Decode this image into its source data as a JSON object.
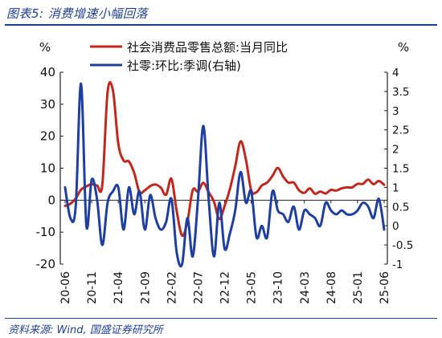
{
  "figure": {
    "title": "图表5:  消费增速小幅回落",
    "source": "资料来源:  Wind,  国盛证券研究所"
  },
  "chart_data": {
    "type": "line",
    "left_unit": "%",
    "right_unit": "%",
    "ylim_left": [
      -20,
      40
    ],
    "ylim_right": [
      -1,
      4
    ],
    "yticks_left": [
      "40",
      "30",
      "20",
      "10",
      "0",
      "-10",
      "-20"
    ],
    "yticks_right": [
      "4",
      "3.5",
      "3",
      "2.5",
      "2",
      "1.5",
      "1",
      "0.5",
      "0",
      "-0.5",
      "-1"
    ],
    "x_labels": [
      "20-06",
      "20-11",
      "21-04",
      "21-09",
      "22-02",
      "22-07",
      "22-12",
      "23-05",
      "23-10",
      "24-03",
      "24-08",
      "25-01",
      "25-06"
    ],
    "legend_position": "top",
    "grid": false,
    "series": [
      {
        "name": "社会消费品零售总额:当月同比",
        "axis": "left",
        "color": "#c0281e",
        "values": [
          -1.8,
          -1.1,
          0.5,
          3.3,
          4.3,
          5.0,
          4.6,
          4.8,
          33.8,
          34.2,
          17.7,
          12.4,
          12.1,
          8.5,
          2.5,
          3.1,
          4.4,
          4.9,
          3.9,
          1.7,
          6.7,
          -3.5,
          -11.1,
          -6.7,
          3.1,
          2.7,
          5.4,
          2.5,
          -0.5,
          -5.9,
          -1.8,
          3.5,
          10.6,
          18.4,
          12.7,
          3.1,
          2.5,
          4.6,
          5.5,
          7.6,
          10.1,
          7.4,
          5.5,
          5.5,
          3.1,
          2.3,
          3.7,
          2.0,
          2.7,
          2.1,
          3.2,
          3.0,
          3.7,
          4.0,
          4.0,
          5.1,
          5.1,
          6.4,
          5.0,
          6.0,
          4.8
        ]
      },
      {
        "name": "社零:环比:季调(右轴)",
        "axis": "right",
        "color": "#1f3fa0",
        "values": [
          1.0,
          0.2,
          0.5,
          3.7,
          0.0,
          1.2,
          0.7,
          -0.5,
          0.6,
          0.9,
          1.0,
          -0.1,
          1.0,
          0.3,
          0.9,
          -0.1,
          0.8,
          0.2,
          -0.1,
          0.1,
          0.7,
          -0.7,
          -1.0,
          0.2,
          -0.8,
          0.7,
          2.6,
          0.7,
          -0.8,
          0.6,
          -0.6,
          -0.2,
          0.4,
          1.4,
          0.6,
          0.9,
          -0.3,
          0.0,
          -0.3,
          0.9,
          0.4,
          0.3,
          0.1,
          0.5,
          -0.1,
          0.4,
          0.3,
          0.2,
          0.0,
          0.6,
          0.4,
          0.3,
          0.4,
          0.3,
          0.3,
          0.4,
          0.6,
          0.5,
          0.2,
          0.7,
          -0.1
        ]
      }
    ]
  }
}
